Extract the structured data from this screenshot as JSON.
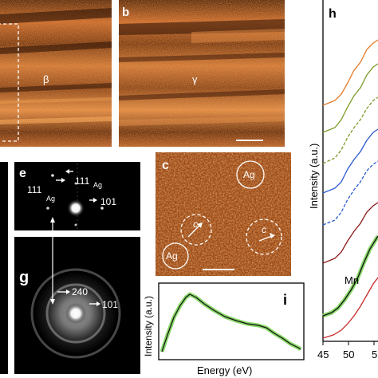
{
  "panels": {
    "a": {
      "phase_label": "β"
    },
    "b": {
      "letter": "b",
      "phase_label": "γ"
    },
    "c": {
      "letter": "c",
      "ag_label_1": "Ag",
      "ag_label_2": "Ag",
      "c_label_1": "c",
      "c_label_2": "c"
    },
    "e": {
      "letter": "e",
      "spot_111_top": "111",
      "spot_111_top_sub": "Ag",
      "spot_111_left": "111",
      "spot_111_left_sub": "Ag",
      "spot_101": "101"
    },
    "g": {
      "letter": "g",
      "spot_240": "240",
      "spot_101": "101"
    },
    "h": {
      "letter": "h",
      "ylabel": "Intensity (a.u.)",
      "x_ticks": [
        "45",
        "50",
        "5"
      ],
      "annotation": "Mn"
    },
    "i": {
      "letter": "i",
      "ylabel": "Intensity (a.u.)",
      "xlabel": "Energy (eV)"
    }
  },
  "colors": {
    "tem_dark": "#3a1a08",
    "tem_mid": "#a8521c",
    "tem_light": "#e0884a",
    "spectrum_fill": "#8ad86a",
    "spectrum_line": "#111111",
    "h_curves": [
      "#e07a2a",
      "#7a9a2a",
      "#7a9a2a",
      "#2a5ad0",
      "#2a5ad0",
      "#8a1a1a",
      "#111111",
      "#c82a2a"
    ]
  }
}
